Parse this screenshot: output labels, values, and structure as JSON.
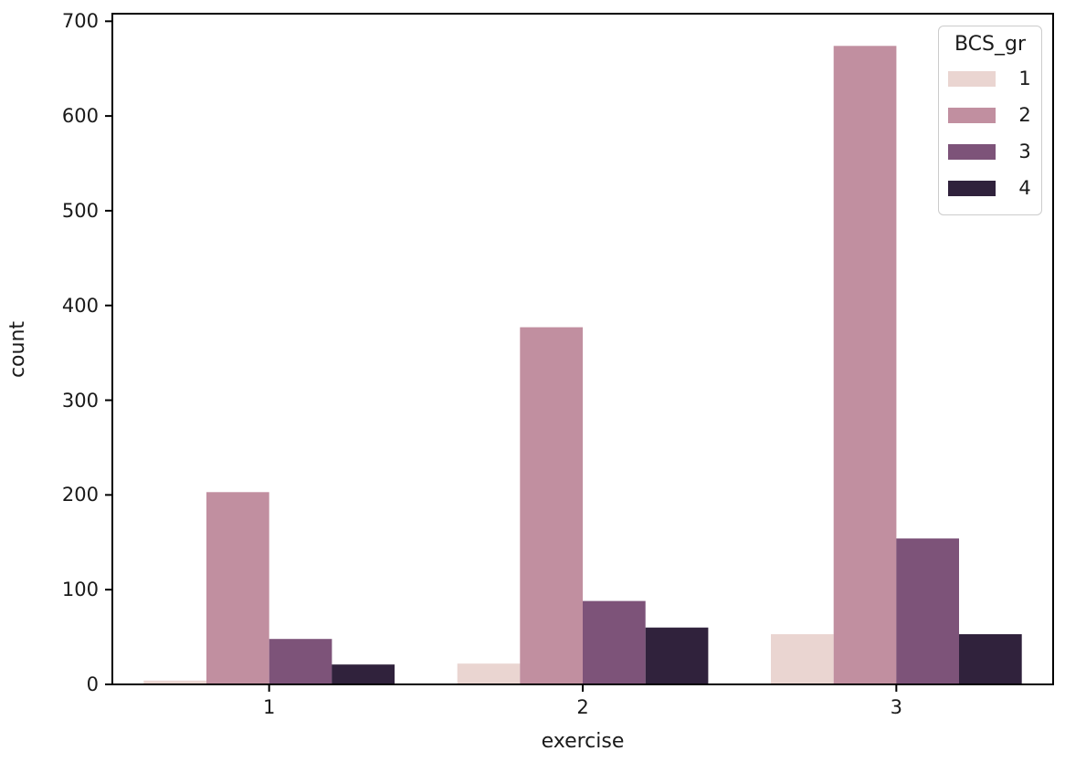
{
  "chart_data": {
    "type": "bar",
    "mode": "grouped",
    "title": "",
    "xlabel": "exercise",
    "ylabel": "count",
    "categories": [
      "1",
      "2",
      "3"
    ],
    "series": [
      {
        "name": "1",
        "color": "#ead5d1",
        "values": [
          4,
          22,
          53
        ]
      },
      {
        "name": "2",
        "color": "#c18fa0",
        "values": [
          203,
          377,
          674
        ]
      },
      {
        "name": "3",
        "color": "#7d5379",
        "values": [
          48,
          88,
          154
        ]
      },
      {
        "name": "4",
        "color": "#30223c",
        "values": [
          21,
          60,
          53
        ]
      }
    ],
    "legend": {
      "title": "BCS_gr",
      "labels": [
        "1",
        "2",
        "3",
        "4"
      ],
      "position": "upper right"
    },
    "ylim": [
      0,
      708
    ],
    "yticks": [
      0,
      100,
      200,
      300,
      400,
      500,
      600,
      700
    ],
    "grid": false,
    "group_width_fraction": 0.8,
    "axis_color": "#000000",
    "background_color": "#ffffff"
  }
}
